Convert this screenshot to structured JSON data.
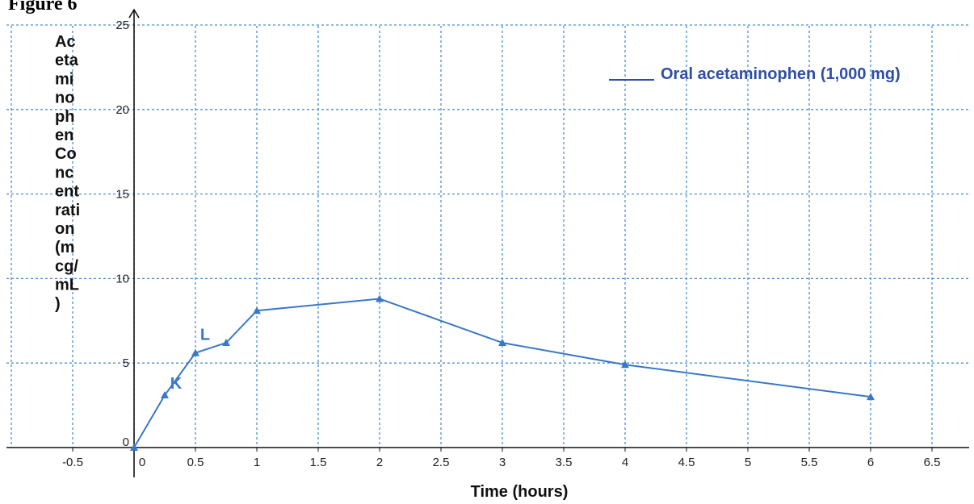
{
  "figure": {
    "title": "Figure 6"
  },
  "colors": {
    "series": "#3a78c7",
    "legend_text": "#2e4fa8",
    "grid": "#4a8fd4"
  },
  "chart_data": {
    "type": "line",
    "title": "",
    "xlabel": "Time (hours)",
    "ylabel_lines": [
      "Ac",
      "eta",
      "mi",
      "no",
      "ph",
      "en",
      "Co",
      "nc",
      "ent",
      "rati",
      "on",
      "(m",
      "cg/",
      "mL",
      ")"
    ],
    "xlim": [
      -0.75,
      6.75
    ],
    "ylim": [
      0,
      25
    ],
    "x_ticks": [
      -0.5,
      0,
      0.5,
      1,
      1.5,
      2,
      2.5,
      3,
      3.5,
      4,
      4.5,
      5,
      5.5,
      6,
      6.5
    ],
    "x_tick_labels": [
      "-0.5",
      "0",
      "0.5",
      "1",
      "1.5",
      "2",
      "2.5",
      "3",
      "3.5",
      "4",
      "4.5",
      "5",
      "5.5",
      "6",
      "6.5"
    ],
    "y_ticks": [
      0,
      5,
      10,
      15,
      20,
      25
    ],
    "y_tick_labels": [
      "0",
      "5",
      "10",
      "15",
      "20",
      "25"
    ],
    "grid": true,
    "legend": "top-right",
    "series": [
      {
        "name": "Oral acetaminophen (1,000 mg)",
        "x": [
          0,
          0.25,
          0.5,
          0.75,
          1,
          2,
          3,
          4,
          6
        ],
        "y": [
          0,
          3.1,
          5.6,
          6.2,
          8.1,
          8.8,
          6.2,
          4.9,
          3.0
        ]
      }
    ],
    "annotations": [
      {
        "text": "K",
        "x": 0.25,
        "y": 3.1
      },
      {
        "text": "L",
        "x": 0.5,
        "y": 5.6
      }
    ]
  }
}
